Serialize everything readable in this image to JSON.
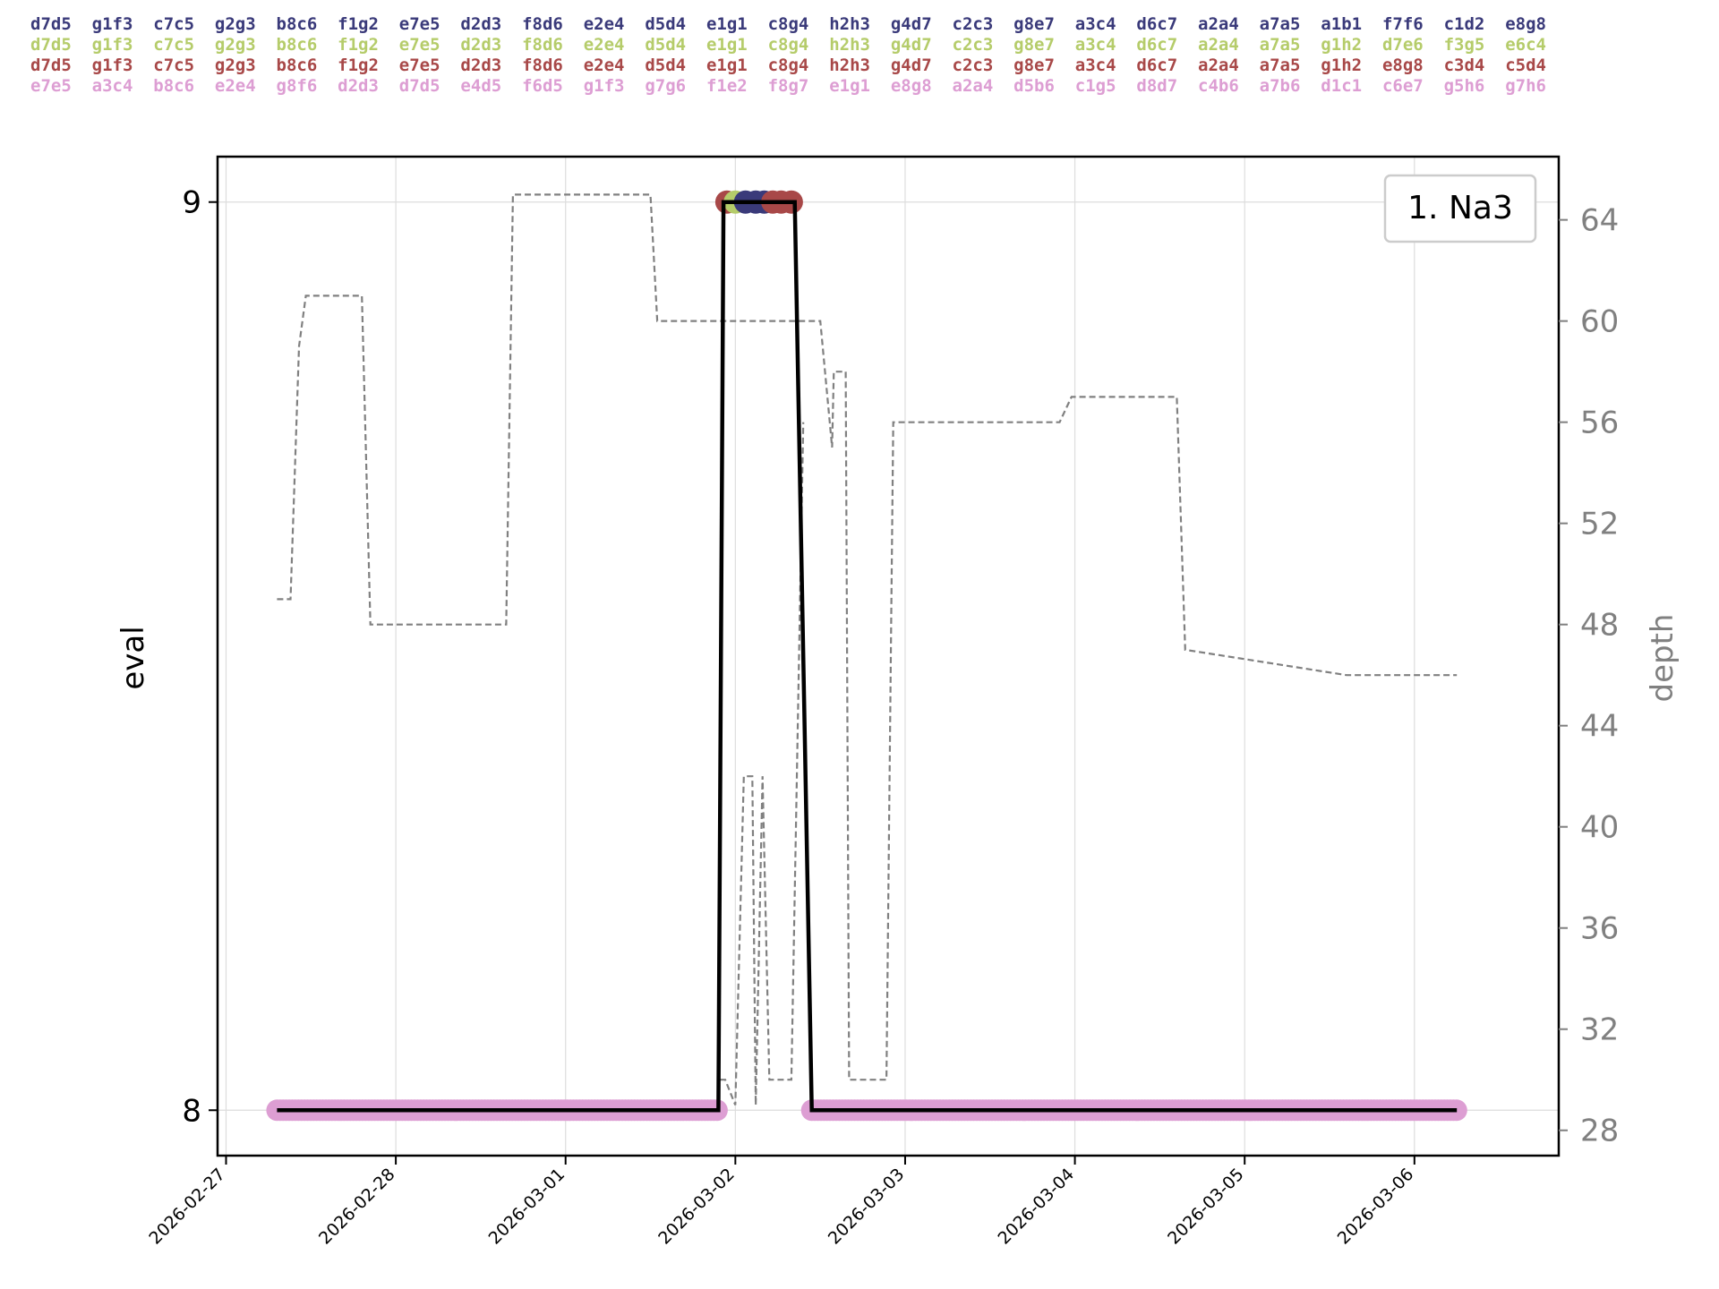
{
  "pv_lines": [
    {
      "text": "d7d5  g1f3  c7c5  g2g3  b8c6  f1g2  e7e5  d2d3  f8d6  e2e4  d5d4  e1g1  c8g4  h2h3  g4d7  c2c3  g8e7  a3c4  d6c7  a2a4  a7a5  a1b1  f7f6  c1d2  e8g8",
      "color": "#3a3a7a"
    },
    {
      "text": "d7d5  g1f3  c7c5  g2g3  b8c6  f1g2  e7e5  d2d3  f8d6  e2e4  d5d4  e1g1  c8g4  h2h3  g4d7  c2c3  g8e7  a3c4  d6c7  a2a4  a7a5  g1h2  d7e6  f3g5  e6c4",
      "color": "#b5cc6a"
    },
    {
      "text": "d7d5  g1f3  c7c5  g2g3  b8c6  f1g2  e7e5  d2d3  f8d6  e2e4  d5d4  e1g1  c8g4  h2h3  g4d7  c2c3  g8e7  a3c4  d6c7  a2a4  a7a5  g1h2  e8g8  c3d4  c5d4",
      "color": "#a84848"
    },
    {
      "text": "e7e5  a3c4  b8c6  e2e4  g8f6  d2d3  d7d5  e4d5  f6d5  g1f3  g7g6  f1e2  f8g7  e1g1  e8g8  a2a4  d5b6  c1g5  d8d7  c4b6  a7b6  d1c1  c6e7  g5h6  g7h6",
      "color": "#dd9ed3"
    }
  ],
  "chart_data": {
    "type": "line",
    "title": "",
    "xlabel": "",
    "ylabel": "eval",
    "y2label": "depth",
    "legend": {
      "text": "1. Na3",
      "placement": "top-right"
    },
    "x_ticks": [
      "2026-02-27",
      "2026-02-28",
      "2026-03-01",
      "2026-03-02",
      "2026-03-03",
      "2026-03-04",
      "2026-03-05",
      "2026-03-06"
    ],
    "y_ticks": [
      8,
      9
    ],
    "y2_ticks": [
      28,
      32,
      36,
      40,
      44,
      48,
      52,
      56,
      60,
      64
    ],
    "xlim_days": [
      -0.05,
      7.85
    ],
    "ylim": [
      7.95,
      9.05
    ],
    "y2lim": [
      27,
      66.5
    ],
    "grid": true,
    "eval_series": {
      "name": "eval",
      "color": "#000000",
      "x_days": [
        0.3,
        2.9,
        2.93,
        3.35,
        3.45,
        7.25
      ],
      "y": [
        8,
        8,
        9,
        9,
        8,
        8
      ]
    },
    "depth_series": {
      "name": "depth",
      "color": "#808080",
      "x_days": [
        0.3,
        0.38,
        0.43,
        0.47,
        0.8,
        0.85,
        1.65,
        1.69,
        2.5,
        2.54,
        3.5,
        3.57,
        3.58,
        3.61,
        3.65,
        3.67,
        3.89,
        3.93,
        4.91,
        4.98,
        5.6,
        5.65,
        6.6,
        6.65,
        7.25
      ],
      "y": [
        49,
        49,
        59,
        61,
        61,
        48,
        48,
        65,
        65,
        60,
        60,
        55,
        58,
        58,
        58,
        30,
        30,
        56,
        56,
        57,
        57,
        47,
        46,
        46,
        46
      ]
    },
    "depth_spikes": {
      "x_days": [
        2.91,
        2.94,
        3.0,
        3.05,
        3.1,
        3.12,
        3.16,
        3.2,
        3.23,
        3.33,
        3.4
      ],
      "y": [
        30,
        30,
        29,
        42,
        42,
        29,
        42,
        30,
        30,
        30,
        56
      ]
    },
    "markers_top": [
      {
        "x_days": 2.95,
        "color": "#a84848"
      },
      {
        "x_days": 3.0,
        "color": "#b5cc6a"
      },
      {
        "x_days": 3.06,
        "color": "#3a3a7a"
      },
      {
        "x_days": 3.12,
        "color": "#3a3a7a"
      },
      {
        "x_days": 3.17,
        "color": "#3a3a7a"
      },
      {
        "x_days": 3.22,
        "color": "#a84848"
      },
      {
        "x_days": 3.27,
        "color": "#a84848"
      },
      {
        "x_days": 3.33,
        "color": "#a84848"
      }
    ],
    "markers_bottom": {
      "color": "#dd9ed3",
      "ranges_days": [
        [
          0.3,
          2.9
        ],
        [
          3.45,
          7.25
        ]
      ]
    }
  }
}
